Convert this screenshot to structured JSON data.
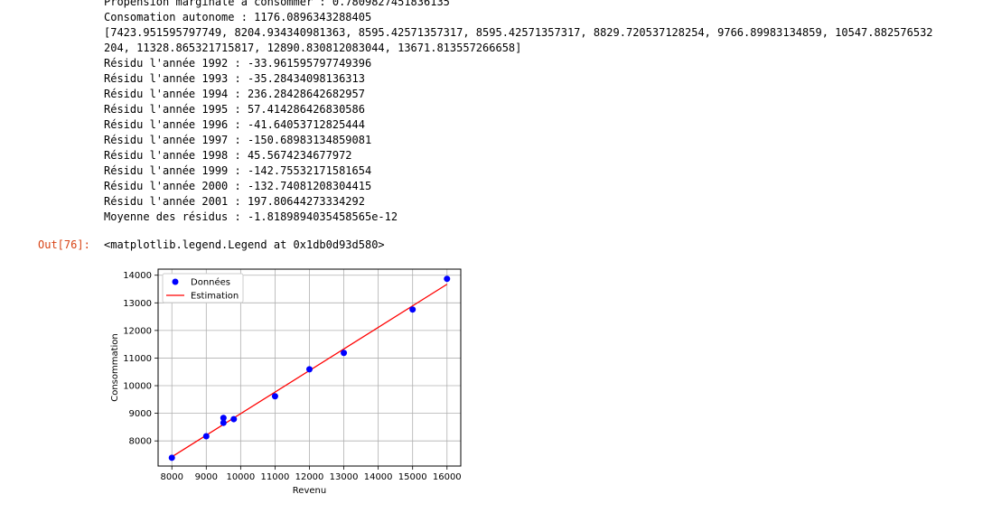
{
  "output": {
    "lines": [
      "Propension marginale à consommer : 0.7809827451836135",
      "Consomation autonome : 1176.0896343288405",
      "[7423.951595797749, 8204.934340981363, 8595.42571357317, 8595.42571357317, 8829.720537128254, 9766.89983134859, 10547.882576532",
      "204, 11328.865321715817, 12890.830812083044, 13671.813557266658]",
      "Résidu l'année 1992 : -33.961595797749396",
      "Résidu l'année 1993 : -35.28434098136313",
      "Résidu l'année 1994 : 236.28428642682957",
      "Résidu l'année 1995 : 57.414286426830586",
      "Résidu l'année 1996 : -41.64053712825444",
      "Résidu l'année 1997 : -150.68983134859081",
      "Résidu l'année 1998 : 45.5674234677972",
      "Résidu l'année 1999 : -142.75532171581654",
      "Résidu l'année 2000 : -132.74081208304415",
      "Résidu l'année 2001 : 197.80644273334292",
      "Moyenne des résidus : -1.8189894035458565e-12"
    ],
    "prompt": "Out[76]:",
    "repr": "<matplotlib.legend.Legend at 0x1db0d93d580>"
  },
  "chart_data": {
    "type": "scatter",
    "title": "",
    "xlabel": "Revenu",
    "ylabel": "Consommation",
    "xlim": [
      7600,
      16400
    ],
    "ylim": [
      7090,
      14220
    ],
    "xticks": [
      8000,
      9000,
      10000,
      11000,
      12000,
      13000,
      14000,
      15000,
      16000
    ],
    "yticks": [
      8000,
      9000,
      10000,
      11000,
      12000,
      13000,
      14000
    ],
    "grid": true,
    "legend_position": "upper-left",
    "series": [
      {
        "name": "Données",
        "kind": "scatter",
        "color": "#0000ff",
        "x": [
          8000,
          9000,
          9500,
          9500,
          9800,
          11000,
          12000,
          13000,
          15000,
          16000
        ],
        "y": [
          7390,
          8170,
          8832,
          8653,
          8788,
          9616,
          10593,
          11186,
          12758,
          13870
        ]
      },
      {
        "name": "Estimation",
        "kind": "line",
        "color": "#ff0000",
        "x": [
          8000,
          16000
        ],
        "y": [
          7423.95,
          13671.81
        ]
      }
    ]
  }
}
